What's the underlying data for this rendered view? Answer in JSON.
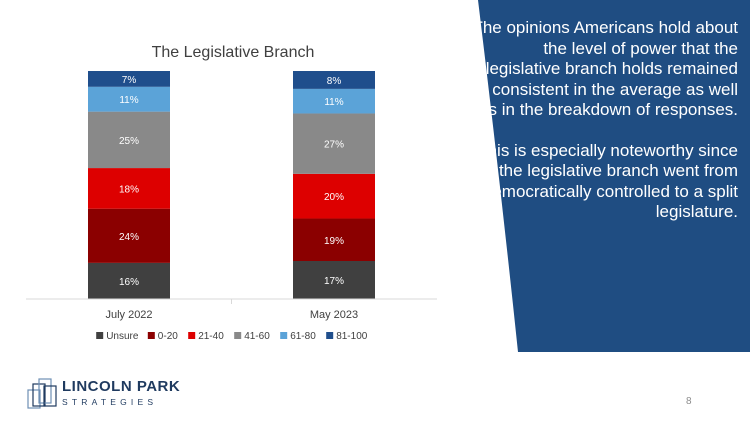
{
  "chart_data": {
    "type": "stacked-bar-100",
    "title": "The Legislative Branch",
    "categories": [
      "July 2022",
      "May 2023"
    ],
    "series": [
      {
        "name": "Unsure",
        "color": "#404040",
        "values": [
          16,
          17
        ]
      },
      {
        "name": "0-20",
        "color": "#8b0000",
        "values": [
          24,
          19
        ]
      },
      {
        "name": "21-40",
        "color": "#dd0000",
        "values": [
          18,
          20
        ]
      },
      {
        "name": "41-60",
        "color": "#898989",
        "values": [
          25,
          27
        ]
      },
      {
        "name": "61-80",
        "color": "#5ba3d8",
        "values": [
          11,
          11
        ]
      },
      {
        "name": "81-100",
        "color": "#1f4e8c",
        "values": [
          7,
          8
        ]
      }
    ],
    "value_suffix": "%",
    "legend_position": "bottom",
    "xlabel": "",
    "ylabel": "",
    "grid": false
  },
  "panel": {
    "color": "#1f4d82",
    "paragraphs": [
      "The opinions Americans hold about the level of power that the legislative branch holds remained consistent in the average as well as in the breakdown of responses.",
      "This is especially noteworthy since the legislative branch went from Democratically controlled to a split legislature."
    ]
  },
  "logo": {
    "name": "LINCOLN PARK",
    "subtitle": "STRATEGIES"
  },
  "page_number": "8"
}
